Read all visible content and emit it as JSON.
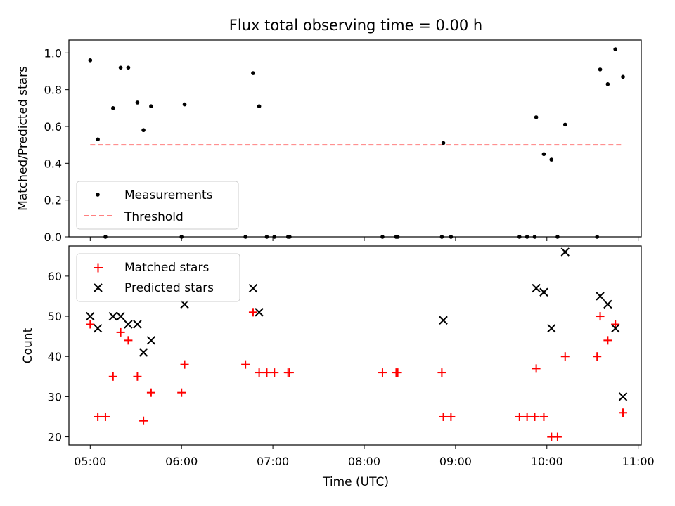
{
  "chart_data": [
    {
      "type": "scatter",
      "title": "Flux total observing time = 0.00 h",
      "xlabel": "",
      "ylabel": "Matched/Predicted stars",
      "xlim": [
        "04:46",
        "11:02"
      ],
      "ylim": [
        0,
        1.07
      ],
      "yticks": [
        "0.0",
        "0.2",
        "0.4",
        "0.6",
        "0.8",
        "1.0"
      ],
      "legend": {
        "placement": "lower-left",
        "entries": [
          "Measurements",
          "Threshold"
        ]
      },
      "colors": {
        "measurements": "#000000",
        "threshold": "#ff8080"
      },
      "series": [
        {
          "name": "Measurements",
          "marker": "dot",
          "points": [
            [
              "05:00",
              0.96
            ],
            [
              "05:05",
              0.53
            ],
            [
              "05:10",
              0.0
            ],
            [
              "05:15",
              0.7
            ],
            [
              "05:20",
              0.92
            ],
            [
              "05:25",
              0.92
            ],
            [
              "05:31",
              0.73
            ],
            [
              "05:35",
              0.58
            ],
            [
              "05:40",
              0.71
            ],
            [
              "06:00",
              0.0
            ],
            [
              "06:02",
              0.72
            ],
            [
              "06:42",
              0.0
            ],
            [
              "06:47",
              0.89
            ],
            [
              "06:51",
              0.71
            ],
            [
              "06:56",
              0.0
            ],
            [
              "07:01",
              0.0
            ],
            [
              "07:10",
              0.0
            ],
            [
              "07:11",
              0.0
            ],
            [
              "08:12",
              0.0
            ],
            [
              "08:21",
              0.0
            ],
            [
              "08:22",
              0.0
            ],
            [
              "08:51",
              0.0
            ],
            [
              "08:52",
              0.51
            ],
            [
              "08:57",
              0.0
            ],
            [
              "09:42",
              0.0
            ],
            [
              "09:47",
              0.0
            ],
            [
              "09:52",
              0.0
            ],
            [
              "09:53",
              0.65
            ],
            [
              "09:58",
              0.45
            ],
            [
              "10:03",
              0.42
            ],
            [
              "10:07",
              0.0
            ],
            [
              "10:12",
              0.61
            ],
            [
              "10:33",
              0.0
            ],
            [
              "10:35",
              0.91
            ],
            [
              "10:40",
              0.83
            ],
            [
              "10:45",
              1.02
            ],
            [
              "10:50",
              0.87
            ]
          ]
        },
        {
          "name": "Threshold",
          "marker": "dashed-line",
          "points": [
            [
              "05:00",
              0.5
            ],
            [
              "10:50",
              0.5
            ]
          ]
        }
      ]
    },
    {
      "type": "scatter",
      "title": "",
      "xlabel": "Time (UTC)",
      "ylabel": "Count",
      "xlim": [
        "04:46",
        "11:02"
      ],
      "ylim": [
        18,
        67.5
      ],
      "yticks": [
        "20",
        "30",
        "40",
        "50",
        "60"
      ],
      "xticks": [
        "05:00",
        "06:00",
        "07:00",
        "08:00",
        "09:00",
        "10:00",
        "11:00"
      ],
      "legend": {
        "placement": "upper-left",
        "entries": [
          "Matched stars",
          "Predicted stars"
        ]
      },
      "colors": {
        "matched": "#ff0000",
        "predicted": "#000000"
      },
      "series": [
        {
          "name": "Matched stars",
          "marker": "plus",
          "points": [
            [
              "05:00",
              48
            ],
            [
              "05:05",
              25
            ],
            [
              "05:10",
              25
            ],
            [
              "05:15",
              35
            ],
            [
              "05:20",
              46
            ],
            [
              "05:25",
              44
            ],
            [
              "05:31",
              35
            ],
            [
              "05:35",
              24
            ],
            [
              "05:40",
              31
            ],
            [
              "06:00",
              31
            ],
            [
              "06:02",
              38
            ],
            [
              "06:42",
              38
            ],
            [
              "06:47",
              51
            ],
            [
              "06:51",
              36
            ],
            [
              "06:56",
              36
            ],
            [
              "07:01",
              36
            ],
            [
              "07:10",
              36
            ],
            [
              "07:11",
              36
            ],
            [
              "08:12",
              36
            ],
            [
              "08:21",
              36
            ],
            [
              "08:22",
              36
            ],
            [
              "08:51",
              36
            ],
            [
              "08:52",
              25
            ],
            [
              "08:57",
              25
            ],
            [
              "09:42",
              25
            ],
            [
              "09:47",
              25
            ],
            [
              "09:52",
              25
            ],
            [
              "09:53",
              37
            ],
            [
              "09:58",
              25
            ],
            [
              "10:03",
              20
            ],
            [
              "10:07",
              20
            ],
            [
              "10:12",
              40
            ],
            [
              "10:33",
              40
            ],
            [
              "10:35",
              50
            ],
            [
              "10:40",
              44
            ],
            [
              "10:45",
              48
            ],
            [
              "10:50",
              26
            ]
          ]
        },
        {
          "name": "Predicted stars",
          "marker": "x",
          "points": [
            [
              "05:00",
              50
            ],
            [
              "05:05",
              47
            ],
            [
              "05:15",
              50
            ],
            [
              "05:20",
              50
            ],
            [
              "05:25",
              48
            ],
            [
              "05:31",
              48
            ],
            [
              "05:35",
              41
            ],
            [
              "05:40",
              44
            ],
            [
              "06:02",
              53
            ],
            [
              "06:47",
              57
            ],
            [
              "06:51",
              51
            ],
            [
              "08:52",
              49
            ],
            [
              "09:53",
              57
            ],
            [
              "09:58",
              56
            ],
            [
              "10:03",
              47
            ],
            [
              "10:12",
              66
            ],
            [
              "10:35",
              55
            ],
            [
              "10:40",
              53
            ],
            [
              "10:45",
              47
            ],
            [
              "10:50",
              30
            ]
          ]
        }
      ]
    }
  ]
}
